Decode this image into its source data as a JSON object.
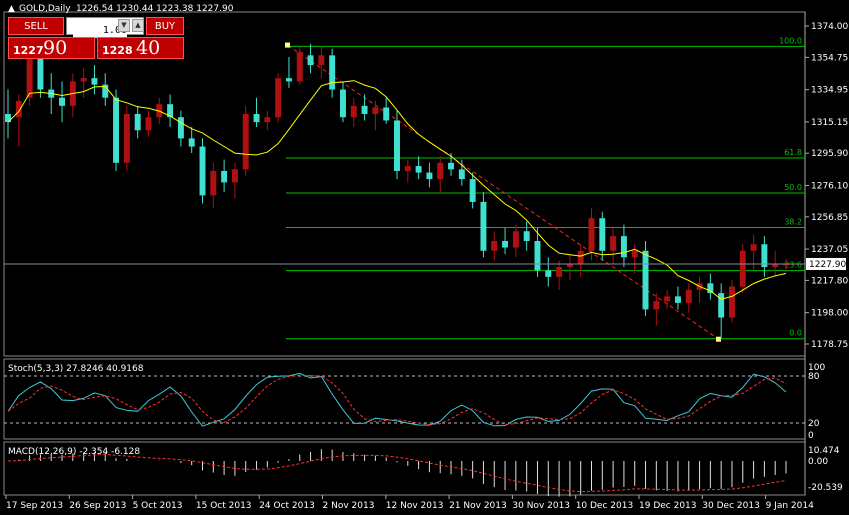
{
  "window": {
    "symbol_label": "GOLD,Daily",
    "ohlc": "1226.54 1230.44 1223.38 1227.90",
    "current_price": "1227.90"
  },
  "trade_panel": {
    "sell_label": "SELL",
    "buy_label": "BUY",
    "lot_value": "1.00",
    "sell_small": "1227",
    "sell_big": "90",
    "buy_small": "1228",
    "buy_big": "40"
  },
  "colors": {
    "bull": "#b11010",
    "bear": "#40e0d0",
    "ma": "#ffff00",
    "fib": "#00c000",
    "trend": "#ff2020",
    "grid": "#888888"
  },
  "price_axis_labels": [
    "1374.00",
    "1354.75",
    "1334.95",
    "1315.15",
    "1295.90",
    "1276.10",
    "1256.85",
    "1237.05",
    "1217.80",
    "1198.00",
    "1178.75"
  ],
  "fib_levels": [
    {
      "label": "100.0",
      "price": 1361.5
    },
    {
      "label": "61.8",
      "price": 1293.0
    },
    {
      "label": "50.0",
      "price": 1271.5
    },
    {
      "label": "38.2",
      "price": 1250.3
    },
    {
      "label": "23.6",
      "price": 1223.8
    },
    {
      "label": "0.0",
      "price": 1182.0
    }
  ],
  "stoch": {
    "label": "Stoch(5,3,3) 27.8246 40.9168",
    "axis_labels": [
      "100",
      "80",
      "20",
      "0"
    ]
  },
  "macd": {
    "label": "MACD(12,26,9) -2.354 -6.128",
    "axis_labels": [
      "10.474",
      "0.00",
      "-20.539"
    ]
  },
  "date_labels": [
    "17 Sep 2013",
    "26 Sep 2013",
    "5 Oct 2013",
    "15 Oct 2013",
    "24 Oct 2013",
    "2 Nov 2013",
    "12 Nov 2013",
    "21 Nov 2013",
    "30 Nov 2013",
    "10 Dec 2013",
    "19 Dec 2013",
    "30 Dec 2013",
    "9 Jan 2014"
  ],
  "chart_data": {
    "type": "candlestick",
    "candles": [
      [
        1320,
        1335,
        1305,
        1315
      ],
      [
        1318,
        1332,
        1300,
        1328
      ],
      [
        1330,
        1360,
        1325,
        1355
      ],
      [
        1355,
        1360,
        1330,
        1335
      ],
      [
        1335,
        1345,
        1320,
        1330
      ],
      [
        1330,
        1340,
        1315,
        1325
      ],
      [
        1325,
        1345,
        1318,
        1340
      ],
      [
        1340,
        1348,
        1330,
        1342
      ],
      [
        1342,
        1350,
        1332,
        1338
      ],
      [
        1338,
        1345,
        1325,
        1330
      ],
      [
        1330,
        1335,
        1285,
        1290
      ],
      [
        1290,
        1325,
        1285,
        1320
      ],
      [
        1320,
        1325,
        1305,
        1310
      ],
      [
        1310,
        1322,
        1306,
        1318
      ],
      [
        1318,
        1330,
        1314,
        1326
      ],
      [
        1326,
        1332,
        1312,
        1318
      ],
      [
        1318,
        1322,
        1300,
        1305
      ],
      [
        1305,
        1312,
        1296,
        1300
      ],
      [
        1300,
        1305,
        1265,
        1270
      ],
      [
        1270,
        1290,
        1262,
        1285
      ],
      [
        1285,
        1292,
        1272,
        1278
      ],
      [
        1278,
        1290,
        1268,
        1286
      ],
      [
        1286,
        1325,
        1282,
        1320
      ],
      [
        1320,
        1330,
        1312,
        1315
      ],
      [
        1315,
        1322,
        1310,
        1318
      ],
      [
        1318,
        1345,
        1315,
        1342
      ],
      [
        1342,
        1355,
        1336,
        1340
      ],
      [
        1340,
        1362,
        1338,
        1358
      ],
      [
        1356,
        1363,
        1345,
        1350
      ],
      [
        1350,
        1362,
        1342,
        1356
      ],
      [
        1356,
        1360,
        1330,
        1335
      ],
      [
        1335,
        1340,
        1315,
        1318
      ],
      [
        1318,
        1330,
        1312,
        1325
      ],
      [
        1325,
        1332,
        1316,
        1320
      ],
      [
        1320,
        1328,
        1310,
        1324
      ],
      [
        1324,
        1330,
        1314,
        1316
      ],
      [
        1316,
        1322,
        1280,
        1285
      ],
      [
        1285,
        1292,
        1278,
        1288
      ],
      [
        1288,
        1294,
        1280,
        1284
      ],
      [
        1284,
        1290,
        1275,
        1280
      ],
      [
        1280,
        1294,
        1272,
        1290
      ],
      [
        1290,
        1296,
        1282,
        1286
      ],
      [
        1286,
        1292,
        1276,
        1280
      ],
      [
        1280,
        1284,
        1262,
        1266
      ],
      [
        1266,
        1272,
        1232,
        1236
      ],
      [
        1236,
        1248,
        1230,
        1242
      ],
      [
        1242,
        1250,
        1234,
        1238
      ],
      [
        1238,
        1252,
        1232,
        1248
      ],
      [
        1248,
        1254,
        1236,
        1242
      ],
      [
        1242,
        1250,
        1220,
        1224
      ],
      [
        1224,
        1232,
        1214,
        1220
      ],
      [
        1220,
        1230,
        1212,
        1226
      ],
      [
        1226,
        1234,
        1218,
        1228
      ],
      [
        1228,
        1240,
        1220,
        1236
      ],
      [
        1236,
        1262,
        1230,
        1256
      ],
      [
        1256,
        1260,
        1230,
        1236
      ],
      [
        1236,
        1250,
        1228,
        1245
      ],
      [
        1245,
        1252,
        1226,
        1232
      ],
      [
        1232,
        1240,
        1222,
        1236
      ],
      [
        1236,
        1242,
        1196,
        1200
      ],
      [
        1200,
        1210,
        1190,
        1205
      ],
      [
        1205,
        1212,
        1200,
        1208
      ],
      [
        1208,
        1214,
        1200,
        1204
      ],
      [
        1204,
        1216,
        1198,
        1212
      ],
      [
        1212,
        1220,
        1204,
        1216
      ],
      [
        1216,
        1222,
        1206,
        1210
      ],
      [
        1210,
        1216,
        1182,
        1195
      ],
      [
        1195,
        1218,
        1192,
        1214
      ],
      [
        1214,
        1240,
        1210,
        1236
      ],
      [
        1236,
        1246,
        1224,
        1240
      ],
      [
        1240,
        1245,
        1220,
        1226
      ],
      [
        1226,
        1236,
        1220,
        1228
      ],
      [
        1227,
        1231,
        1223,
        1228
      ]
    ],
    "price_range": [
      1172,
      1382
    ]
  }
}
